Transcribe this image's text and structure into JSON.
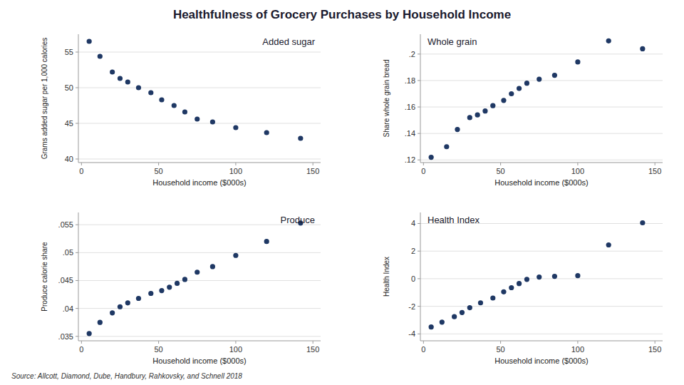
{
  "title": "Healthfulness of Grocery Purchases by Household Income",
  "source": "Source: Allcott, Diamond, Dube, Handbury, Rahkovsky, and Schnell 2018",
  "chart_data": [
    {
      "type": "scatter",
      "title": "Added sugar",
      "xlabel": "Household income ($000s)",
      "ylabel": "Grams added sugar per 1,000 calories",
      "color": "#1f3864",
      "grid": "y",
      "x": [
        5,
        12,
        20,
        25,
        30,
        37,
        45,
        52,
        60,
        67,
        75,
        85,
        100,
        120,
        142
      ],
      "values": [
        56.5,
        54.4,
        52.2,
        51.3,
        50.8,
        50.0,
        49.3,
        48.3,
        47.5,
        46.6,
        45.6,
        45.2,
        44.4,
        43.7,
        42.9
      ],
      "xlim": [
        -2,
        155
      ],
      "xticks": [
        0,
        50,
        100,
        150
      ],
      "ylim": [
        39.5,
        57.5
      ],
      "yticks": [
        40,
        45,
        50,
        55
      ]
    },
    {
      "type": "scatter",
      "title": "Whole grain",
      "xlabel": "Household income ($000s)",
      "ylabel": "Share whole grain bread",
      "color": "#1f3864",
      "grid": "y",
      "x": [
        5,
        15,
        22,
        30,
        35,
        40,
        45,
        52,
        57,
        62,
        67,
        75,
        85,
        100,
        120,
        142
      ],
      "values": [
        0.122,
        0.13,
        0.143,
        0.152,
        0.154,
        0.157,
        0.161,
        0.165,
        0.17,
        0.174,
        0.178,
        0.181,
        0.184,
        0.194,
        0.21,
        0.204
      ],
      "xlim": [
        -2,
        155
      ],
      "xticks": [
        0,
        50,
        100,
        150
      ],
      "ylim": [
        0.118,
        0.215
      ],
      "yticks": [
        {
          "value": 0.12,
          "label": ".12"
        },
        {
          "value": 0.14,
          "label": ".14"
        },
        {
          "value": 0.16,
          "label": ".16"
        },
        {
          "value": 0.18,
          "label": ".18"
        },
        {
          "value": 0.2,
          "label": ".2"
        }
      ]
    },
    {
      "type": "scatter",
      "title": "Produce",
      "xlabel": "Household income ($000s)",
      "ylabel": "Produce calorie share",
      "color": "#1f3864",
      "grid": "y",
      "x": [
        5,
        12,
        20,
        25,
        30,
        37,
        45,
        52,
        57,
        62,
        67,
        75,
        85,
        100,
        120,
        142
      ],
      "values": [
        0.0355,
        0.0375,
        0.0392,
        0.0403,
        0.041,
        0.0418,
        0.0427,
        0.0432,
        0.0438,
        0.0445,
        0.0452,
        0.0465,
        0.0475,
        0.0495,
        0.052,
        0.0553
      ],
      "xlim": [
        -2,
        155
      ],
      "xticks": [
        0,
        50,
        100,
        150
      ],
      "ylim": [
        0.0342,
        0.0572
      ],
      "yticks": [
        {
          "value": 0.035,
          "label": ".035"
        },
        {
          "value": 0.04,
          "label": ".04"
        },
        {
          "value": 0.045,
          "label": ".045"
        },
        {
          "value": 0.05,
          "label": ".05"
        },
        {
          "value": 0.055,
          "label": ".055"
        }
      ]
    },
    {
      "type": "scatter",
      "title": "Health Index",
      "xlabel": "Household income ($000s)",
      "ylabel": "Health Index",
      "color": "#1f3864",
      "grid": "y",
      "x": [
        5,
        12,
        20,
        25,
        30,
        37,
        45,
        52,
        57,
        62,
        67,
        75,
        85,
        100,
        120,
        142
      ],
      "values": [
        -3.5,
        -3.15,
        -2.75,
        -2.45,
        -2.1,
        -1.75,
        -1.4,
        -0.95,
        -0.65,
        -0.35,
        -0.05,
        0.12,
        0.17,
        0.22,
        2.45,
        4.05
      ],
      "xlim": [
        -2,
        155
      ],
      "xticks": [
        0,
        50,
        100,
        150
      ],
      "ylim": [
        -4.5,
        4.8
      ],
      "yticks": [
        -4,
        -2,
        0,
        2,
        4
      ]
    }
  ]
}
